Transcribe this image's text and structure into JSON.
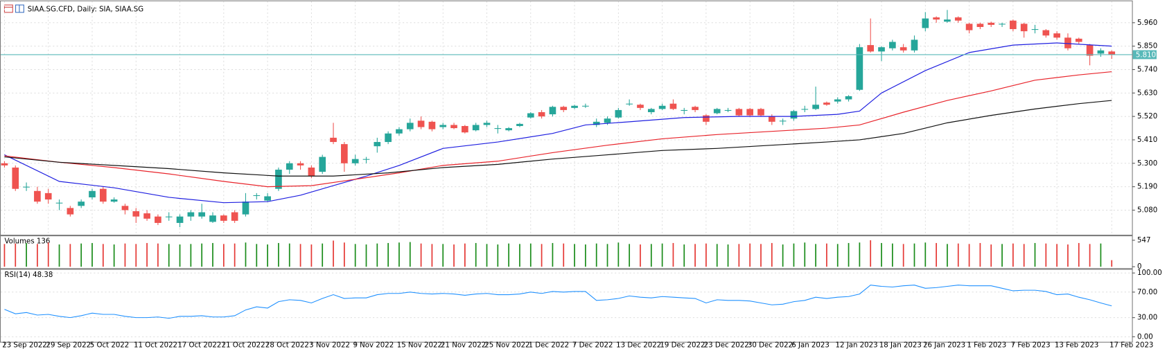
{
  "header": {
    "title": "SIAA.SG.CFD, Daily:  SIA, SIAA.SG"
  },
  "chart_data": [
    {
      "type": "candlestick",
      "up_color": "#26a69a",
      "down_color": "#ef5350",
      "grid": true,
      "ylim": [
        4.968,
        6.047
      ],
      "yticks": [
        {
          "value": 5.96,
          "label": "5.960"
        },
        {
          "value": 5.85,
          "label": "5.850"
        },
        {
          "value": 5.74,
          "label": "5.740"
        },
        {
          "value": 5.63,
          "label": "5.630"
        },
        {
          "value": 5.52,
          "label": "5.520"
        },
        {
          "value": 5.41,
          "label": "5.410"
        },
        {
          "value": 5.3,
          "label": "5.300"
        },
        {
          "value": 5.19,
          "label": "5.190"
        },
        {
          "value": 5.08,
          "label": "5.080"
        }
      ],
      "categories": [
        "23 Sep 2022",
        null,
        null,
        null,
        "29 Sep 2022",
        null,
        null,
        null,
        "5 Oct 2022",
        null,
        null,
        null,
        "11 Oct 2022",
        null,
        null,
        null,
        "17 Oct 2022",
        null,
        null,
        null,
        "21 Oct 2022",
        null,
        null,
        null,
        "28 Oct 2022",
        null,
        null,
        null,
        "3 Nov 2022",
        null,
        null,
        null,
        "9 Nov 2022",
        null,
        null,
        null,
        "15 Nov 2022",
        null,
        null,
        null,
        "21 Nov 2022",
        null,
        null,
        null,
        "25 Nov 2022",
        null,
        null,
        null,
        "1 Dec 2022",
        null,
        null,
        null,
        "7 Dec 2022",
        null,
        null,
        null,
        "13 Dec 2022",
        null,
        null,
        null,
        "19 Dec 2022",
        null,
        null,
        null,
        "23 Dec 2022",
        null,
        null,
        null,
        "30 Dec 2022",
        null,
        null,
        null,
        "6 Jan 2023",
        null,
        null,
        null,
        "12 Jan 2023",
        null,
        null,
        null,
        "18 Jan 2023",
        null,
        null,
        null,
        "26 Jan 2023",
        null,
        null,
        null,
        "1 Feb 2023",
        null,
        null,
        null,
        "7 Feb 2023",
        null,
        null,
        null,
        "13 Feb 2023",
        null,
        null,
        null,
        null,
        "17 Feb 2023"
      ],
      "ohlc": [
        [
          5.3,
          5.31,
          5.28,
          5.29
        ],
        [
          5.28,
          5.29,
          5.17,
          5.18
        ],
        [
          5.19,
          5.21,
          5.17,
          5.19
        ],
        [
          5.17,
          5.19,
          5.11,
          5.12
        ],
        [
          5.16,
          5.18,
          5.11,
          5.13
        ],
        [
          5.115,
          5.13,
          5.08,
          5.115
        ],
        [
          5.09,
          5.1,
          5.05,
          5.06
        ],
        [
          5.1,
          5.13,
          5.09,
          5.12
        ],
        [
          5.14,
          5.18,
          5.13,
          5.17
        ],
        [
          5.18,
          5.19,
          5.11,
          5.12
        ],
        [
          5.12,
          5.14,
          5.115,
          5.13
        ],
        [
          5.1,
          5.11,
          5.06,
          5.08
        ],
        [
          5.075,
          5.09,
          5.02,
          5.05
        ],
        [
          5.065,
          5.08,
          5.03,
          5.04
        ],
        [
          5.05,
          5.06,
          5.01,
          5.02
        ],
        [
          5.05,
          5.07,
          5.03,
          5.05
        ],
        [
          5.02,
          5.06,
          5.0,
          5.05
        ],
        [
          5.05,
          5.08,
          5.03,
          5.07
        ],
        [
          5.05,
          5.11,
          5.04,
          5.07
        ],
        [
          5.025,
          5.07,
          5.02,
          5.055
        ],
        [
          5.055,
          5.06,
          5.02,
          5.03
        ],
        [
          5.07,
          5.08,
          5.02,
          5.03
        ],
        [
          5.06,
          5.16,
          5.05,
          5.12
        ],
        [
          5.15,
          5.16,
          5.13,
          5.15
        ],
        [
          5.125,
          5.16,
          5.12,
          5.145
        ],
        [
          5.18,
          5.28,
          5.17,
          5.27
        ],
        [
          5.27,
          5.31,
          5.25,
          5.3
        ],
        [
          5.3,
          5.31,
          5.27,
          5.29
        ],
        [
          5.28,
          5.29,
          5.23,
          5.24
        ],
        [
          5.26,
          5.34,
          5.25,
          5.33
        ],
        [
          5.42,
          5.49,
          5.39,
          5.4
        ],
        [
          5.39,
          5.4,
          5.26,
          5.3
        ],
        [
          5.3,
          5.34,
          5.29,
          5.32
        ],
        [
          5.32,
          5.33,
          5.3,
          5.32
        ],
        [
          5.38,
          5.42,
          5.35,
          5.4
        ],
        [
          5.4,
          5.45,
          5.39,
          5.44
        ],
        [
          5.44,
          5.47,
          5.43,
          5.46
        ],
        [
          5.46,
          5.51,
          5.45,
          5.49
        ],
        [
          5.5,
          5.52,
          5.46,
          5.47
        ],
        [
          5.495,
          5.5,
          5.45,
          5.46
        ],
        [
          5.47,
          5.49,
          5.46,
          5.48
        ],
        [
          5.48,
          5.49,
          5.46,
          5.465
        ],
        [
          5.475,
          5.48,
          5.44,
          5.445
        ],
        [
          5.455,
          5.49,
          5.45,
          5.48
        ],
        [
          5.48,
          5.5,
          5.47,
          5.49
        ],
        [
          5.465,
          5.48,
          5.44,
          5.465
        ],
        [
          5.455,
          5.47,
          5.45,
          5.465
        ],
        [
          5.475,
          5.49,
          5.47,
          5.485
        ],
        [
          5.515,
          5.54,
          5.51,
          5.535
        ],
        [
          5.54,
          5.55,
          5.51,
          5.52
        ],
        [
          5.53,
          5.57,
          5.52,
          5.565
        ],
        [
          5.565,
          5.57,
          5.54,
          5.55
        ],
        [
          5.56,
          5.575,
          5.555,
          5.57
        ],
        [
          5.57,
          5.58,
          5.56,
          5.57
        ],
        [
          5.48,
          5.51,
          5.47,
          5.495
        ],
        [
          5.49,
          5.52,
          5.48,
          5.51
        ],
        [
          5.515,
          5.56,
          5.51,
          5.55
        ],
        [
          5.58,
          5.6,
          5.57,
          5.58
        ],
        [
          5.575,
          5.58,
          5.55,
          5.56
        ],
        [
          5.54,
          5.56,
          5.53,
          5.555
        ],
        [
          5.555,
          5.58,
          5.55,
          5.57
        ],
        [
          5.58,
          5.6,
          5.55,
          5.555
        ],
        [
          5.55,
          5.56,
          5.53,
          5.55
        ],
        [
          5.565,
          5.57,
          5.54,
          5.55
        ],
        [
          5.525,
          5.53,
          5.48,
          5.495
        ],
        [
          5.535,
          5.56,
          5.53,
          5.555
        ],
        [
          5.55,
          5.56,
          5.54,
          5.55
        ],
        [
          5.555,
          5.56,
          5.52,
          5.525
        ],
        [
          5.555,
          5.56,
          5.52,
          5.525
        ],
        [
          5.555,
          5.56,
          5.52,
          5.525
        ],
        [
          5.52,
          5.53,
          5.48,
          5.495
        ],
        [
          5.5,
          5.51,
          5.48,
          5.5
        ],
        [
          5.51,
          5.55,
          5.5,
          5.545
        ],
        [
          5.555,
          5.57,
          5.54,
          5.555
        ],
        [
          5.555,
          5.66,
          5.55,
          5.575
        ],
        [
          5.585,
          5.59,
          5.57,
          5.575
        ],
        [
          5.59,
          5.61,
          5.58,
          5.6
        ],
        [
          5.6,
          5.62,
          5.59,
          5.615
        ],
        [
          5.645,
          5.86,
          5.64,
          5.845
        ],
        [
          5.855,
          5.98,
          5.82,
          5.825
        ],
        [
          5.825,
          5.85,
          5.78,
          5.845
        ],
        [
          5.84,
          5.88,
          5.83,
          5.87
        ],
        [
          5.845,
          5.86,
          5.82,
          5.83
        ],
        [
          5.83,
          5.9,
          5.82,
          5.88
        ],
        [
          5.935,
          6.01,
          5.92,
          5.98
        ],
        [
          5.985,
          5.99,
          5.96,
          5.975
        ],
        [
          5.965,
          6.02,
          5.96,
          5.975
        ],
        [
          5.985,
          5.99,
          5.96,
          5.97
        ],
        [
          5.955,
          5.96,
          5.91,
          5.925
        ],
        [
          5.955,
          5.96,
          5.93,
          5.94
        ],
        [
          5.96,
          5.965,
          5.94,
          5.95
        ],
        [
          5.955,
          5.96,
          5.94,
          5.955
        ],
        [
          5.97,
          5.975,
          5.92,
          5.93
        ],
        [
          5.955,
          5.96,
          5.89,
          5.92
        ],
        [
          5.93,
          5.95,
          5.91,
          5.93
        ],
        [
          5.925,
          5.93,
          5.89,
          5.9
        ],
        [
          5.91,
          5.92,
          5.88,
          5.89
        ],
        [
          5.89,
          5.91,
          5.83,
          5.84
        ],
        [
          5.885,
          5.89,
          5.86,
          5.87
        ],
        [
          5.855,
          5.86,
          5.76,
          5.805
        ],
        [
          5.815,
          5.84,
          5.8,
          5.83
        ],
        [
          5.825,
          5.83,
          5.79,
          5.81
        ]
      ],
      "lines": [
        {
          "color": "#1f1fe0",
          "x": [
            0,
            5,
            10,
            15,
            20,
            24,
            27,
            30,
            33,
            36,
            40,
            45,
            50,
            53,
            57,
            62,
            67,
            72,
            76,
            78,
            80,
            84,
            88,
            92,
            96,
            101
          ],
          "values": [
            5.34,
            5.215,
            5.185,
            5.14,
            5.115,
            5.12,
            5.15,
            5.195,
            5.24,
            5.29,
            5.37,
            5.4,
            5.44,
            5.48,
            5.495,
            5.515,
            5.52,
            5.52,
            5.53,
            5.545,
            5.63,
            5.735,
            5.82,
            5.855,
            5.865,
            5.85
          ]
        },
        {
          "color": "#e8232a",
          "x": [
            0,
            5,
            10,
            15,
            20,
            24,
            28,
            32,
            36,
            40,
            45,
            50,
            55,
            60,
            65,
            70,
            75,
            78,
            82,
            86,
            90,
            94,
            98,
            101
          ],
          "values": [
            5.335,
            5.305,
            5.28,
            5.25,
            5.215,
            5.19,
            5.195,
            5.225,
            5.255,
            5.29,
            5.31,
            5.35,
            5.385,
            5.415,
            5.435,
            5.45,
            5.465,
            5.48,
            5.54,
            5.595,
            5.64,
            5.69,
            5.715,
            5.73
          ]
        },
        {
          "color": "#111111",
          "x": [
            0,
            5,
            10,
            15,
            20,
            25,
            30,
            35,
            40,
            45,
            50,
            55,
            60,
            65,
            70,
            75,
            78,
            82,
            86,
            90,
            94,
            98,
            101
          ],
          "values": [
            5.33,
            5.305,
            5.29,
            5.275,
            5.255,
            5.24,
            5.24,
            5.255,
            5.28,
            5.295,
            5.32,
            5.34,
            5.36,
            5.37,
            5.385,
            5.4,
            5.41,
            5.44,
            5.49,
            5.525,
            5.555,
            5.58,
            5.595
          ]
        }
      ],
      "last": {
        "value": 5.81,
        "label": "5.810",
        "color": "#58b9b9"
      }
    },
    {
      "type": "volume",
      "title": "Volumes 136",
      "up_color": "#1a8c1a",
      "down_color": "#e53935",
      "ylim": [
        0,
        615
      ],
      "yticks": [
        547,
        0
      ],
      "values": [
        470,
        480,
        490,
        470,
        500,
        460,
        470,
        480,
        490,
        470,
        460,
        480,
        470,
        490,
        480,
        470,
        460,
        470,
        480,
        490,
        470,
        480,
        500,
        470,
        460,
        490,
        480,
        470,
        460,
        480,
        540,
        500,
        470,
        460,
        480,
        490,
        500,
        510,
        480,
        470,
        470,
        460,
        480,
        490,
        470,
        460,
        480,
        470,
        480,
        470,
        490,
        480,
        470,
        460,
        480,
        470,
        500,
        470,
        460,
        470,
        480,
        490,
        460,
        470,
        480,
        470,
        460,
        470,
        480,
        470,
        490,
        460,
        480,
        500,
        470,
        480,
        470,
        490,
        500,
        547,
        490,
        480,
        470,
        480,
        500,
        490,
        470,
        480,
        470,
        490,
        460,
        470,
        480,
        470,
        490,
        480,
        470,
        460,
        490,
        470,
        480,
        136
      ]
    },
    {
      "type": "line",
      "title": "RSI(14) 48.38",
      "color": "#1e90ff",
      "grid": true,
      "ylim": [
        -8,
        104
      ],
      "yticks": [
        {
          "value": 100,
          "label": "100.00"
        },
        {
          "value": 70,
          "label": "70.00"
        },
        {
          "value": 30,
          "label": "30.00"
        },
        {
          "value": 0,
          "label": "0.00"
        }
      ],
      "values": [
        43,
        36,
        38,
        34,
        35,
        32,
        30,
        33,
        37,
        35,
        35,
        32,
        30,
        30,
        31,
        29,
        32,
        32,
        33,
        31,
        31,
        33,
        42,
        47,
        45,
        55,
        58,
        57,
        53,
        60,
        66,
        60,
        61,
        61,
        66,
        68,
        68,
        70,
        68,
        67,
        68,
        67,
        65,
        67,
        68,
        66,
        66,
        67,
        70,
        68,
        71,
        70,
        71,
        71,
        57,
        58,
        60,
        64,
        62,
        61,
        63,
        62,
        61,
        60,
        53,
        58,
        57,
        57,
        56,
        53,
        50,
        51,
        55,
        57,
        62,
        60,
        62,
        63,
        67,
        81,
        79,
        78,
        80,
        81,
        76,
        77,
        79,
        81,
        80,
        80,
        80,
        76,
        72,
        73,
        73,
        71,
        66,
        67,
        62,
        58,
        53,
        48.38
      ]
    }
  ]
}
